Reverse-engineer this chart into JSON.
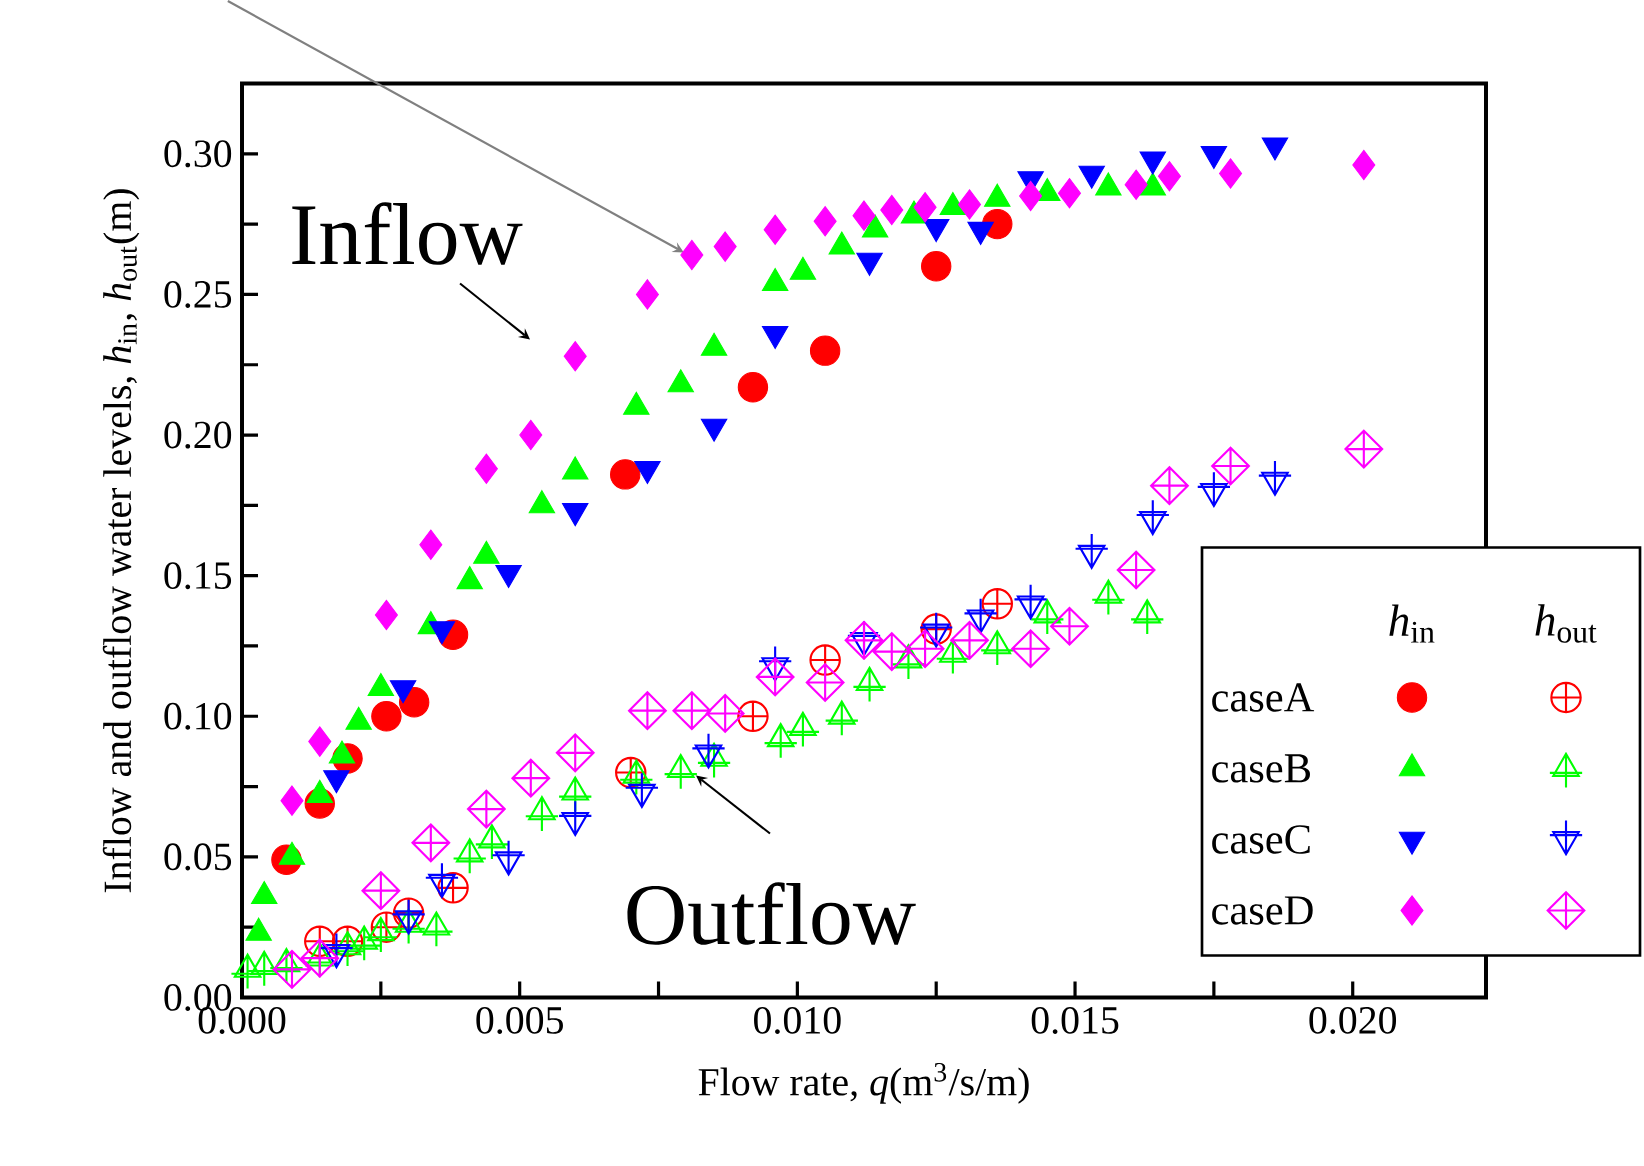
{
  "chart_data": {
    "type": "scatter",
    "xlabel": "Flow rate, *q*(m$^{3}$/s/m)",
    "ylabel": "Inflow and outflow water levels, *h*$_{in}$, *h*$_{out}$(m)",
    "xlim": [
      0,
      0.0224
    ],
    "ylim": [
      0,
      0.325
    ],
    "xticks": [
      {
        "value": 0,
        "label": "0.000"
      },
      {
        "value": 0.0025,
        "label": null
      },
      {
        "value": 0.005,
        "label": "0.005"
      },
      {
        "value": 0.0075,
        "label": null
      },
      {
        "value": 0.01,
        "label": "0.010"
      },
      {
        "value": 0.0125,
        "label": null
      },
      {
        "value": 0.015,
        "label": "0.015"
      },
      {
        "value": 0.0175,
        "label": null
      },
      {
        "value": 0.02,
        "label": "0.020"
      }
    ],
    "yticks": [
      {
        "value": 0,
        "label": "0.00"
      },
      {
        "value": 0.025,
        "label": null
      },
      {
        "value": 0.05,
        "label": "0.05"
      },
      {
        "value": 0.075,
        "label": null
      },
      {
        "value": 0.1,
        "label": "0.10"
      },
      {
        "value": 0.125,
        "label": null
      },
      {
        "value": 0.15,
        "label": "0.15"
      },
      {
        "value": 0.175,
        "label": null
      },
      {
        "value": 0.2,
        "label": "0.20"
      },
      {
        "value": 0.225,
        "label": null
      },
      {
        "value": 0.25,
        "label": "0.25"
      },
      {
        "value": 0.275,
        "label": null
      },
      {
        "value": 0.3,
        "label": "0.30"
      }
    ],
    "legend": "bottom right",
    "series": [
      {
        "name": "caseA",
        "color": "#ff0000",
        "marker": "circle",
        "x": [
          0.0008,
          0.0014,
          0.0019,
          0.0026,
          0.0031,
          0.0038,
          0.0069,
          0.0092,
          0.0105,
          0.0125,
          0.0136
        ],
        "values": [
          0.049,
          0.069,
          0.085,
          0.1,
          0.105,
          0.129,
          0.186,
          0.217,
          0.23,
          0.26,
          0.275
        ]
      },
      {
        "name": "caseB",
        "color": "#00ff00",
        "marker": "triangle",
        "x": [
          0.0003,
          0.0004,
          0.0009,
          0.0014,
          0.0018,
          0.0021,
          0.0025,
          0.0034,
          0.0041,
          0.0044,
          0.0054,
          0.006,
          0.0071,
          0.0079,
          0.0085,
          0.0096,
          0.0101,
          0.0108,
          0.0114,
          0.0121,
          0.0128,
          0.0136,
          0.0145,
          0.0156,
          0.0164
        ],
        "values": [
          0.023,
          0.036,
          0.05,
          0.072,
          0.086,
          0.098,
          0.11,
          0.132,
          0.148,
          0.157,
          0.175,
          0.187,
          0.21,
          0.218,
          0.231,
          0.254,
          0.258,
          0.267,
          0.273,
          0.278,
          0.281,
          0.284,
          0.286,
          0.288,
          0.288
        ]
      },
      {
        "name": "caseC",
        "color": "#0000ff",
        "marker": "triangle-down",
        "x": [
          0.0017,
          0.0029,
          0.0036,
          0.0048,
          0.006,
          0.0073,
          0.0085,
          0.0096,
          0.0113,
          0.0125,
          0.0133,
          0.0142,
          0.0153,
          0.0164,
          0.0175,
          0.0186
        ],
        "values": [
          0.078,
          0.11,
          0.131,
          0.151,
          0.173,
          0.188,
          0.203,
          0.236,
          0.262,
          0.274,
          0.273,
          0.291,
          0.293,
          0.298,
          0.3,
          0.303
        ]
      },
      {
        "name": "caseD",
        "color": "#ff00ff",
        "marker": "diamond",
        "x": [
          0.0009,
          0.0014,
          0.0026,
          0.0034,
          0.0044,
          0.0052,
          0.006,
          0.0073,
          0.0081,
          0.0087,
          0.0096,
          0.0105,
          0.0112,
          0.0117,
          0.0123,
          0.0131,
          0.0142,
          0.0149,
          0.0161,
          0.0167,
          0.0178,
          0.0202
        ],
        "values": [
          0.07,
          0.091,
          0.136,
          0.161,
          0.188,
          0.2,
          0.228,
          0.25,
          0.264,
          0.267,
          0.273,
          0.276,
          0.278,
          0.28,
          0.281,
          0.282,
          0.285,
          0.286,
          0.289,
          0.292,
          0.293,
          0.296
        ]
      },
      {
        "color": "#ff0000",
        "marker": "cross",
        "x": [
          0.0014,
          0.0019,
          0.0026,
          0.003,
          0.0038,
          0.007,
          0.0092,
          0.0105,
          0.0125,
          0.0136
        ],
        "values": [
          0.02,
          0.02,
          0.025,
          0.03,
          0.039,
          0.08,
          0.1,
          0.12,
          0.131,
          0.14
        ]
      },
      {
        "color": "#00ff00",
        "marker": "cross",
        "x": [
          0.0001,
          0.0004,
          0.0008,
          0.0014,
          0.0019,
          0.0022,
          0.0025,
          0.003,
          0.0035,
          0.0041,
          0.0045,
          0.0054,
          0.006,
          0.0071,
          0.0079,
          0.0085,
          0.0097,
          0.0101,
          0.0108,
          0.0113,
          0.012,
          0.0128,
          0.0136,
          0.0145,
          0.0156,
          0.0163
        ],
        "values": [
          0.01,
          0.011,
          0.012,
          0.014,
          0.018,
          0.02,
          0.023,
          0.026,
          0.025,
          0.051,
          0.056,
          0.066,
          0.073,
          0.079,
          0.081,
          0.085,
          0.092,
          0.096,
          0.1,
          0.112,
          0.12,
          0.122,
          0.125,
          0.136,
          0.143,
          0.136
        ]
      },
      {
        "color": "#0000ff",
        "marker": "cross",
        "x": [
          0.0017,
          0.003,
          0.0036,
          0.0048,
          0.006,
          0.0072,
          0.0084,
          0.0096,
          0.0112,
          0.0125,
          0.0133,
          0.0142,
          0.0153,
          0.0164,
          0.0175,
          0.0186
        ],
        "values": [
          0.016,
          0.028,
          0.041,
          0.049,
          0.063,
          0.073,
          0.087,
          0.118,
          0.127,
          0.13,
          0.135,
          0.14,
          0.158,
          0.17,
          0.18,
          0.184
        ]
      },
      {
        "color": "#ff00ff",
        "marker": "cross",
        "x": [
          0.0009,
          0.0014,
          0.0025,
          0.0034,
          0.0044,
          0.0052,
          0.006,
          0.0073,
          0.0081,
          0.0087,
          0.0096,
          0.0105,
          0.0112,
          0.0117,
          0.0123,
          0.0131,
          0.0142,
          0.0149,
          0.0161,
          0.0167,
          0.0178,
          0.0202
        ],
        "values": [
          0.01,
          0.014,
          0.038,
          0.055,
          0.067,
          0.078,
          0.087,
          0.102,
          0.102,
          0.101,
          0.114,
          0.112,
          0.127,
          0.123,
          0.124,
          0.127,
          0.124,
          0.132,
          0.152,
          0.182,
          0.189,
          0.195
        ]
      }
    ],
    "annotations": [
      "Inflow",
      "Outflow",
      "*h*$_{in}$",
      "*h*$_{out}$"
    ]
  }
}
